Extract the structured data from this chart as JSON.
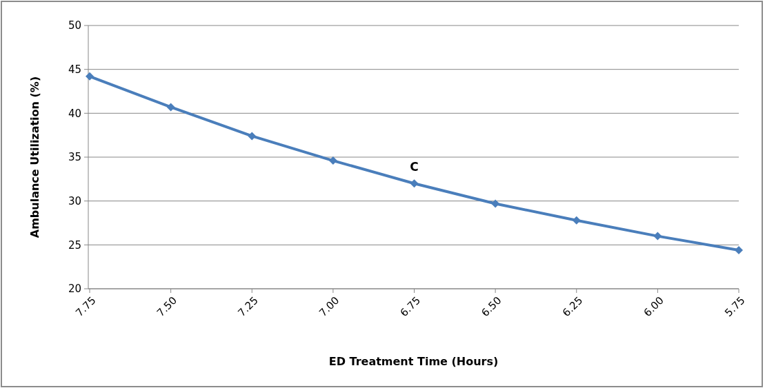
{
  "chart_data": {
    "type": "line",
    "xlabel": "ED Treatment Time (Hours)",
    "ylabel": "Ambulance Utilization (%)",
    "categories": [
      "7.75",
      "7.50",
      "7.25",
      "7.00",
      "6.75",
      "6.50",
      "6.25",
      "6.00",
      "5.75"
    ],
    "series": [
      {
        "color": "#4a7ebb",
        "values": [
          44.2,
          40.7,
          37.4,
          34.6,
          32.0,
          29.7,
          27.8,
          26.0,
          24.4
        ]
      }
    ],
    "ylim": [
      20,
      50
    ],
    "yticks": [
      20,
      25,
      30,
      35,
      40,
      45,
      50
    ],
    "grid": "y",
    "marker": "diamond",
    "line_style": "solid",
    "annotations": [
      {
        "text": "C",
        "x": "6.75",
        "y": 32.0
      }
    ]
  }
}
